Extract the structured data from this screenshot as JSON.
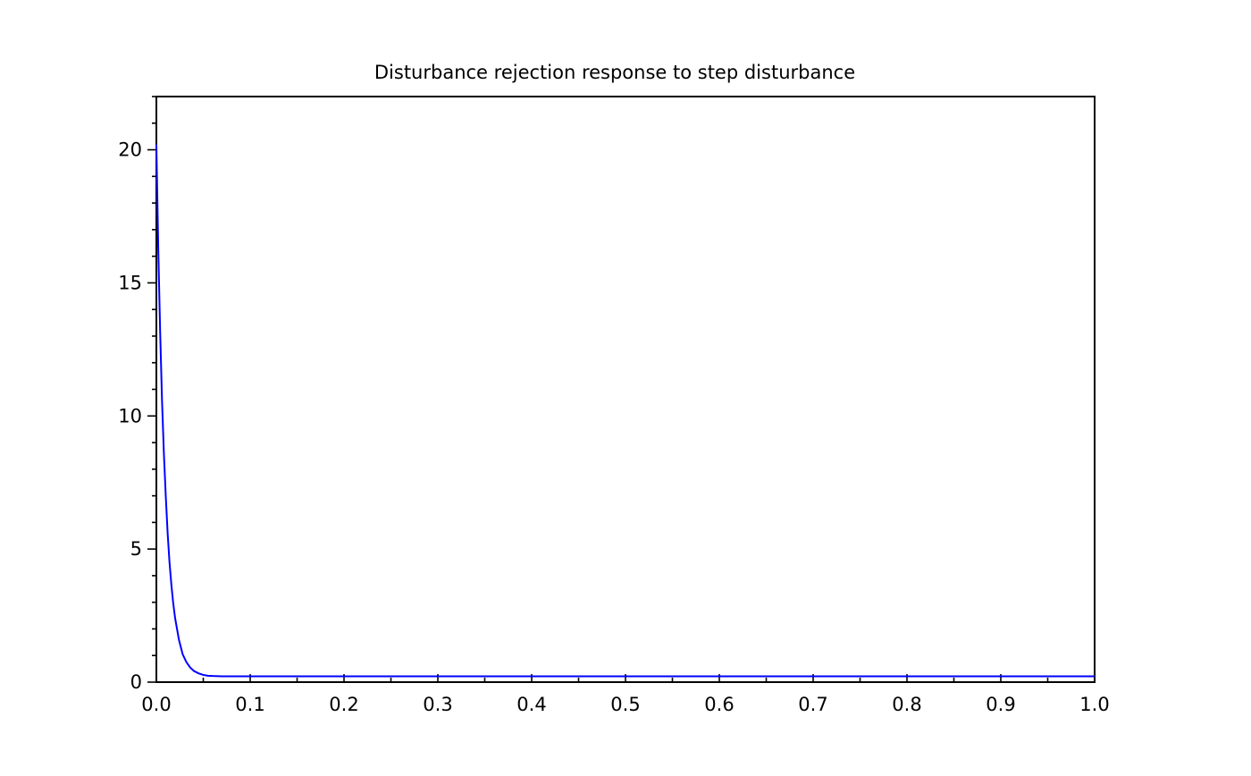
{
  "chart_data": {
    "type": "line",
    "title": "Disturbance rejection response to step disturbance",
    "xlabel": "",
    "ylabel": "",
    "xlim": [
      0.0,
      1.0
    ],
    "ylim": [
      0,
      22
    ],
    "x_ticks": [
      "0.0",
      "0.1",
      "0.2",
      "0.3",
      "0.4",
      "0.5",
      "0.6",
      "0.7",
      "0.8",
      "0.9",
      "1.0"
    ],
    "y_ticks": [
      "0",
      "5",
      "10",
      "15",
      "20"
    ],
    "grid": false,
    "legend": "none",
    "series": [
      {
        "color": "#0000ff",
        "x": [
          0.0,
          0.002,
          0.004,
          0.006,
          0.008,
          0.01,
          0.012,
          0.014,
          0.016,
          0.018,
          0.02,
          0.024,
          0.028,
          0.032,
          0.036,
          0.04,
          0.045,
          0.05,
          0.055,
          0.06,
          0.07,
          0.08,
          0.1,
          0.2,
          0.3,
          0.4,
          0.5,
          0.6,
          0.7,
          0.8,
          0.9,
          1.0
        ],
        "y": [
          20.2,
          16.3,
          13.2,
          10.6,
          8.6,
          7.0,
          5.6,
          4.5,
          3.65,
          2.95,
          2.4,
          1.6,
          1.05,
          0.75,
          0.55,
          0.42,
          0.33,
          0.27,
          0.24,
          0.23,
          0.22,
          0.22,
          0.22,
          0.22,
          0.22,
          0.22,
          0.22,
          0.22,
          0.22,
          0.22,
          0.22,
          0.22
        ]
      }
    ]
  }
}
